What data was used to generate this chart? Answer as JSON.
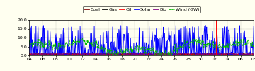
{
  "ylim": [
    0.0,
    20.0
  ],
  "yticks": [
    0.0,
    5.0,
    10.0,
    15.0,
    20.0
  ],
  "ytick_labels": [
    "0.0",
    "5.0",
    "10.0",
    "15.0",
    "20.0"
  ],
  "xtick_labels": [
    "04",
    "06",
    "08",
    "10",
    "12",
    "14",
    "16",
    "18",
    "20",
    "22",
    "24",
    "26",
    "28",
    "30",
    "02",
    "04",
    "06",
    "08"
  ],
  "legend_entries": [
    "Coal",
    "Gas",
    "Oil",
    "Solar",
    "Bio",
    "Wind (GW)"
  ],
  "coal_color": "#7f0000",
  "gas_color": "#000000",
  "oil_color": "#ff0000",
  "solar_color": "#0000ff",
  "bio_color": "#7f007f",
  "wind_color": "#00bb00",
  "vline_color": "#ff0000",
  "background_color": "#fffff0",
  "grid_color": "#555555",
  "border_color": "#000000",
  "n_points": 540
}
